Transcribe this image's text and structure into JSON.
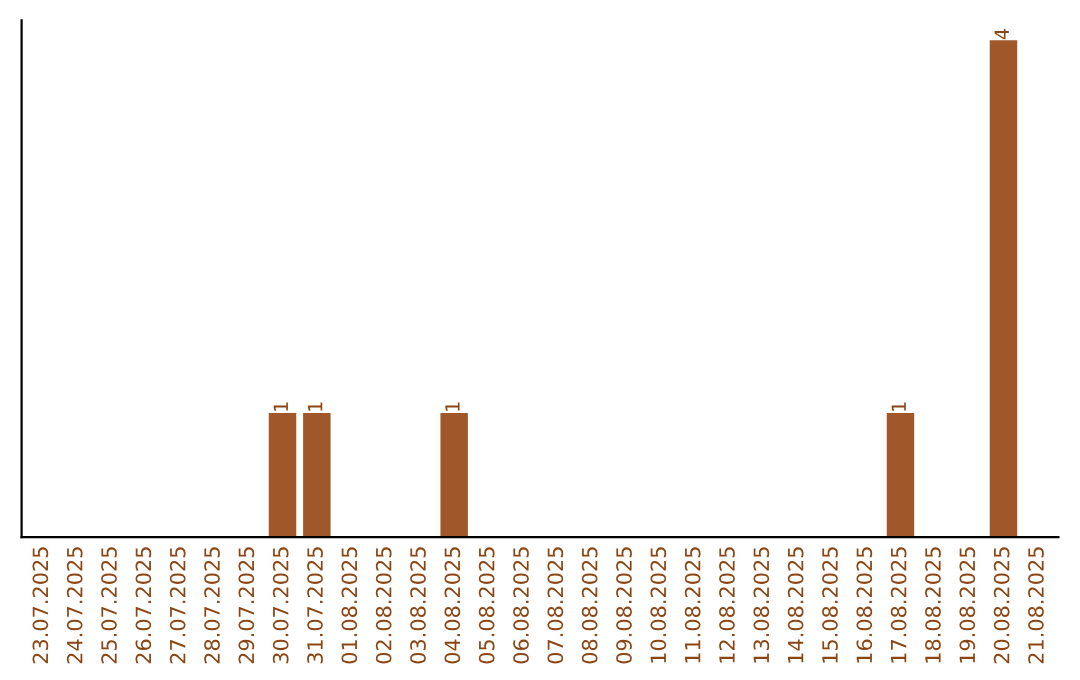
{
  "chart_data": {
    "type": "bar",
    "categories": [
      "23.07.2025",
      "24.07.2025",
      "25.07.2025",
      "26.07.2025",
      "27.07.2025",
      "28.07.2025",
      "29.07.2025",
      "30.07.2025",
      "31.07.2025",
      "01.08.2025",
      "02.08.2025",
      "03.08.2025",
      "04.08.2025",
      "05.08.2025",
      "06.08.2025",
      "07.08.2025",
      "08.08.2025",
      "09.08.2025",
      "10.08.2025",
      "11.08.2025",
      "12.08.2025",
      "13.08.2025",
      "14.08.2025",
      "15.08.2025",
      "16.08.2025",
      "17.08.2025",
      "18.08.2025",
      "19.08.2025",
      "20.08.2025",
      "21.08.2025"
    ],
    "values": [
      0,
      0,
      0,
      0,
      0,
      0,
      0,
      1,
      1,
      0,
      0,
      0,
      1,
      0,
      0,
      0,
      0,
      0,
      0,
      0,
      0,
      0,
      0,
      0,
      0,
      1,
      0,
      0,
      4,
      0
    ],
    "value_labels": [
      null,
      null,
      null,
      null,
      null,
      null,
      null,
      "1",
      "1",
      null,
      null,
      null,
      "1",
      null,
      null,
      null,
      null,
      null,
      null,
      null,
      null,
      null,
      null,
      null,
      null,
      "1",
      null,
      null,
      "4",
      null
    ],
    "color": "#a0582a",
    "tick_labels": "x",
    "grid": false,
    "legend": false
  }
}
